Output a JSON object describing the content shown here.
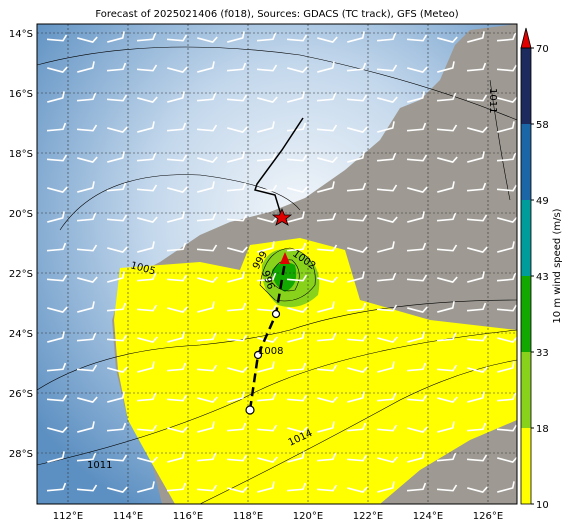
{
  "title": "Forecast of 2025021406 (f018), Sources: GDACS (TC track), GFS (Meteo)",
  "lon_labels": [
    "112°E",
    "114°E",
    "116°E",
    "118°E",
    "120°E",
    "122°E",
    "124°E",
    "126°E"
  ],
  "lat_labels": [
    "14°S",
    "16°S",
    "18°S",
    "20°S",
    "22°S",
    "24°S",
    "26°S",
    "28°S"
  ],
  "colorbar": {
    "label": "10 m wind speed (m/s)",
    "ticks": [
      10,
      18,
      33,
      43,
      49,
      58,
      70
    ],
    "colors": [
      "#ffff00",
      "#88d21b",
      "#12a800",
      "#009c9c",
      "#1a66a6",
      "#1c2a5e",
      "#e00000"
    ]
  },
  "contour_labels": [
    "1005",
    "1008",
    "1011",
    "1014",
    "1002",
    "999",
    "996",
    "1011"
  ]
}
